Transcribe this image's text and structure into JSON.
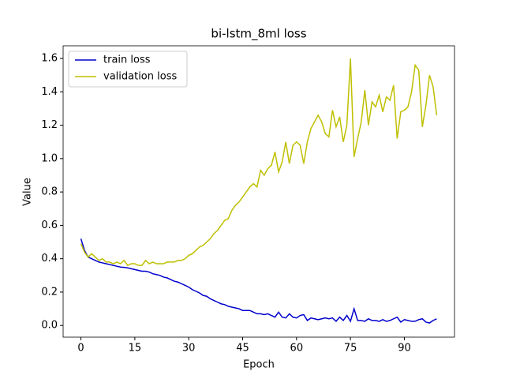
{
  "chart_data": {
    "type": "line",
    "title": "bi-lstm_8ml loss",
    "x_label": "Epoch",
    "y_label": "Value",
    "x": [
      0,
      1,
      2,
      3,
      4,
      5,
      6,
      7,
      8,
      9,
      10,
      11,
      12,
      13,
      14,
      15,
      16,
      17,
      18,
      19,
      20,
      21,
      22,
      23,
      24,
      25,
      26,
      27,
      28,
      29,
      30,
      31,
      32,
      33,
      34,
      35,
      36,
      37,
      38,
      39,
      40,
      41,
      42,
      43,
      44,
      45,
      46,
      47,
      48,
      49,
      50,
      51,
      52,
      53,
      54,
      55,
      56,
      57,
      58,
      59,
      60,
      61,
      62,
      63,
      64,
      65,
      66,
      67,
      68,
      69,
      70,
      71,
      72,
      73,
      74,
      75,
      76,
      77,
      78,
      79,
      80,
      81,
      82,
      83,
      84,
      85,
      86,
      87,
      88,
      89,
      90,
      91,
      92,
      93,
      94,
      95,
      96,
      97,
      98,
      99
    ],
    "series": [
      {
        "name": "train loss",
        "color": "#0000cd",
        "values": [
          0.52,
          0.45,
          0.41,
          0.4,
          0.39,
          0.38,
          0.375,
          0.37,
          0.365,
          0.36,
          0.355,
          0.35,
          0.348,
          0.345,
          0.34,
          0.335,
          0.33,
          0.325,
          0.325,
          0.32,
          0.31,
          0.305,
          0.3,
          0.29,
          0.285,
          0.275,
          0.265,
          0.26,
          0.25,
          0.24,
          0.23,
          0.215,
          0.205,
          0.195,
          0.18,
          0.175,
          0.16,
          0.15,
          0.14,
          0.13,
          0.125,
          0.115,
          0.11,
          0.105,
          0.1,
          0.09,
          0.09,
          0.09,
          0.08,
          0.07,
          0.07,
          0.065,
          0.07,
          0.06,
          0.05,
          0.08,
          0.05,
          0.045,
          0.07,
          0.05,
          0.045,
          0.06,
          0.065,
          0.03,
          0.045,
          0.04,
          0.035,
          0.04,
          0.045,
          0.04,
          0.045,
          0.025,
          0.05,
          0.03,
          0.06,
          0.025,
          0.1,
          0.03,
          0.03,
          0.025,
          0.04,
          0.03,
          0.03,
          0.025,
          0.035,
          0.025,
          0.03,
          0.04,
          0.05,
          0.02,
          0.035,
          0.03,
          0.025,
          0.025,
          0.035,
          0.04,
          0.02,
          0.015,
          0.03,
          0.04
        ]
      },
      {
        "name": "validation loss",
        "color": "#bfbf00",
        "values": [
          0.49,
          0.44,
          0.41,
          0.43,
          0.41,
          0.39,
          0.4,
          0.38,
          0.38,
          0.37,
          0.38,
          0.37,
          0.39,
          0.36,
          0.37,
          0.37,
          0.36,
          0.36,
          0.39,
          0.37,
          0.38,
          0.37,
          0.37,
          0.37,
          0.38,
          0.38,
          0.38,
          0.39,
          0.39,
          0.4,
          0.42,
          0.43,
          0.45,
          0.47,
          0.48,
          0.5,
          0.52,
          0.55,
          0.57,
          0.6,
          0.63,
          0.64,
          0.69,
          0.72,
          0.74,
          0.77,
          0.8,
          0.83,
          0.85,
          0.83,
          0.93,
          0.9,
          0.94,
          0.96,
          1.04,
          0.92,
          0.98,
          1.1,
          0.97,
          1.08,
          1.1,
          1.08,
          0.97,
          1.1,
          1.18,
          1.22,
          1.26,
          1.22,
          1.15,
          1.13,
          1.29,
          1.19,
          1.25,
          1.1,
          1.2,
          1.6,
          1.01,
          1.12,
          1.22,
          1.41,
          1.2,
          1.34,
          1.31,
          1.38,
          1.28,
          1.37,
          1.35,
          1.44,
          1.12,
          1.28,
          1.29,
          1.31,
          1.4,
          1.56,
          1.53,
          1.19,
          1.32,
          1.5,
          1.43,
          1.26
        ]
      }
    ],
    "xlim": [
      -4.95,
      103.95
    ],
    "xticks": [
      0,
      15,
      30,
      45,
      60,
      75,
      90
    ],
    "ylim": [
      -0.07,
      1.676
    ],
    "yticks": [
      {
        "value": 0,
        "label": "0.0"
      },
      0.2,
      0.4,
      0.6,
      0.8,
      {
        "value": 1,
        "label": "1.0"
      },
      1.2,
      1.4,
      1.6
    ],
    "legend": "upper left"
  }
}
